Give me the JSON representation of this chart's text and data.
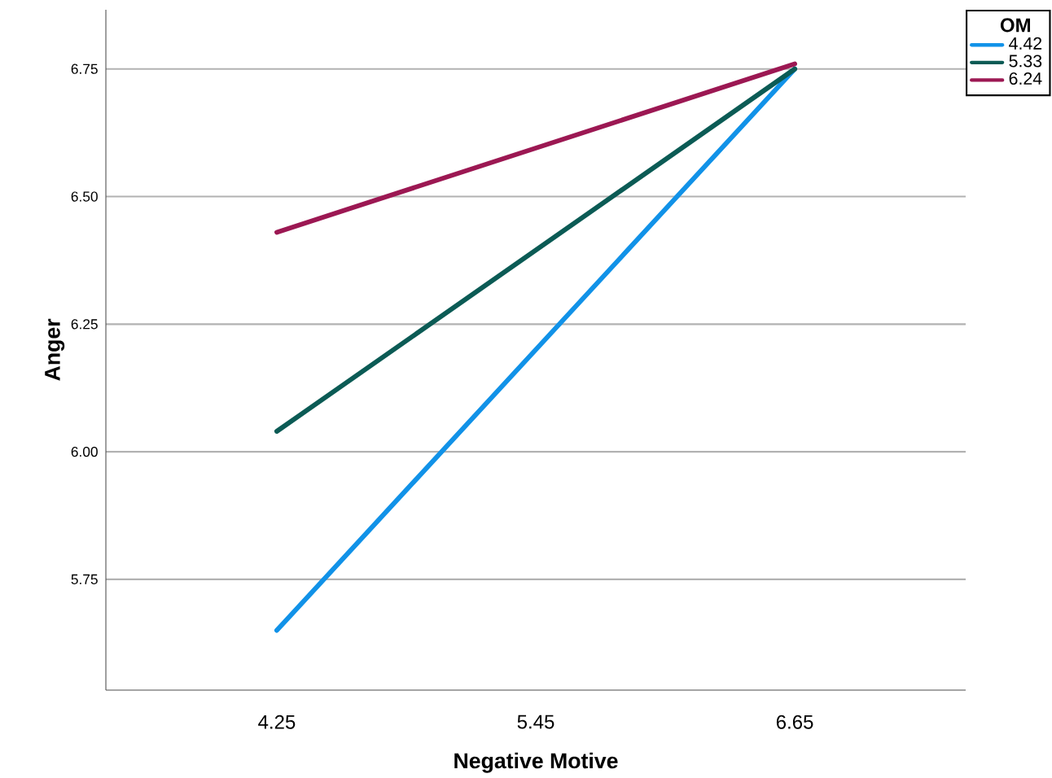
{
  "chart_data": {
    "type": "line",
    "xlabel": "Negative Motive",
    "ylabel": "Anger",
    "legend_title": "OM",
    "categories": [
      "4.25",
      "5.45",
      "6.65"
    ],
    "series": [
      {
        "name": "4.42",
        "color": "#1192e8",
        "values": [
          5.65,
          6.2,
          6.75
        ]
      },
      {
        "name": "5.33",
        "color": "#0b5b55",
        "values": [
          6.04,
          6.395,
          6.75
        ]
      },
      {
        "name": "6.24",
        "color": "#9c1853",
        "values": [
          6.43,
          6.595,
          6.76
        ]
      }
    ],
    "ylim": [
      5.533,
      6.866
    ],
    "yticks": [
      {
        "value": 5.75,
        "label": "5.75"
      },
      {
        "value": 6.0,
        "label": "6.00"
      },
      {
        "value": 6.25,
        "label": "6.25"
      },
      {
        "value": 6.5,
        "label": "6.50"
      },
      {
        "value": 6.75,
        "label": "6.75"
      }
    ],
    "grid": "y",
    "legend": "top right",
    "marker": "none",
    "line_style": "solid"
  }
}
